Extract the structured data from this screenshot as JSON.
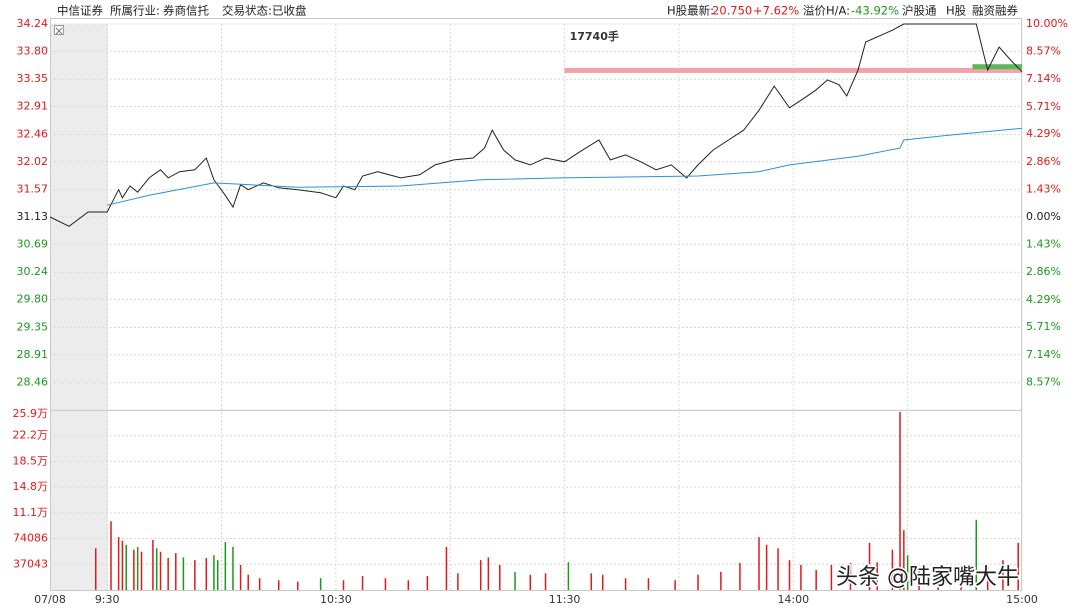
{
  "header": {
    "stock": "中信证券",
    "industry_label": "所属行业:",
    "industry": "券商信托",
    "status_label": "交易状态:",
    "status": "已收盘",
    "h_label": "H股最新:",
    "h_price": "20.750",
    "h_change": "+7.62%",
    "premium_label": "溢价H/A:",
    "premium": "-43.92%",
    "tags": [
      "沪股通",
      "H股",
      "融资融券"
    ]
  },
  "watermark": "头条 @陆家嘴大牛",
  "chart_data": [
    {
      "type": "line",
      "xlim": [
        -15,
        240
      ],
      "xticks": [
        {
          "value": -15,
          "label": "07/08"
        },
        {
          "value": 0,
          "label": "9:30"
        },
        {
          "value": 60,
          "label": "10:30"
        },
        {
          "value": 120,
          "label": "11:30"
        },
        {
          "value": 180,
          "label": "14:00"
        },
        {
          "value": 240,
          "label": "15:00"
        }
      ],
      "xgrid": [
        0,
        30,
        60,
        90,
        120,
        150,
        180,
        210,
        240
      ],
      "ylim": [
        28.02,
        34.24
      ],
      "yticks": [
        34.24,
        {
          "value": 33.8,
          "label": "33.80"
        },
        33.35,
        32.91,
        32.46,
        32.02,
        31.57,
        31.13,
        30.69,
        30.24,
        {
          "value": 29.8,
          "label": "29.80"
        },
        29.35,
        28.91,
        28.46
      ],
      "y2lim": [
        -10,
        10
      ],
      "y2ticks": [
        {
          "value": 10,
          "label": "10.00%"
        },
        {
          "value": 8.57,
          "label": "8.57%"
        },
        {
          "value": 7.14,
          "label": "7.14%"
        },
        {
          "value": 5.71,
          "label": "5.71%"
        },
        {
          "value": 4.29,
          "label": "4.29%"
        },
        {
          "value": 2.86,
          "label": "2.86%"
        },
        {
          "value": 1.43,
          "label": "1.43%"
        },
        {
          "value": 0,
          "label": "0.00%"
        },
        {
          "value": -1.43,
          "label": "1.43%"
        },
        {
          "value": -2.86,
          "label": "2.86%"
        },
        {
          "value": -4.29,
          "label": "4.29%"
        },
        {
          "value": -5.71,
          "label": "5.71%"
        },
        {
          "value": -7.14,
          "label": "7.14%"
        },
        {
          "value": -8.57,
          "label": "8.57%"
        }
      ],
      "up_color": "#e0191b",
      "down_color": "#1a9a1a",
      "flat_color": "#222222",
      "grid": true,
      "series": [
        {
          "color": "#222222",
          "x": [
            -15,
            -10,
            -5,
            0,
            3,
            4,
            6,
            8,
            11,
            14,
            16,
            19,
            23,
            26,
            28,
            31,
            33,
            35,
            37,
            41,
            45,
            50,
            56,
            60,
            62,
            65,
            67,
            71,
            77,
            82,
            86,
            91,
            96,
            99,
            101,
            104,
            107,
            111,
            115,
            120,
            124,
            129,
            132,
            136,
            140,
            144,
            148,
            152,
            155,
            159,
            163,
            167,
            171,
            175,
            179,
            183,
            186,
            189,
            192,
            194,
            197,
            199,
            203,
            206,
            209,
            218,
            228,
            230,
            231,
            234,
            237,
            240
          ],
          "values": [
            31.13,
            30.98,
            31.21,
            31.21,
            31.57,
            31.44,
            31.63,
            31.53,
            31.76,
            31.89,
            31.76,
            31.86,
            31.89,
            32.08,
            31.73,
            31.48,
            31.29,
            31.65,
            31.57,
            31.68,
            31.6,
            31.57,
            31.52,
            31.44,
            31.63,
            31.57,
            31.79,
            31.86,
            31.76,
            31.81,
            31.97,
            32.05,
            32.08,
            32.24,
            32.53,
            32.21,
            32.05,
            31.97,
            32.08,
            32.02,
            32.18,
            32.37,
            32.05,
            32.13,
            32.02,
            31.89,
            31.97,
            31.76,
            31.97,
            32.21,
            32.37,
            32.53,
            32.85,
            33.24,
            32.89,
            33.05,
            33.18,
            33.34,
            33.26,
            33.08,
            33.5,
            33.95,
            34.06,
            34.14,
            34.24,
            34.24,
            34.24,
            33.74,
            33.5,
            33.87,
            33.66,
            33.47
          ]
        },
        {
          "color": "#2f8fd8",
          "x": [
            0,
            11,
            28,
            50,
            77,
            98,
            119,
            155,
            171,
            179,
            197,
            208,
            209,
            221,
            240
          ],
          "values": [
            31.32,
            31.48,
            31.68,
            31.61,
            31.63,
            31.73,
            31.76,
            31.79,
            31.86,
            31.97,
            32.11,
            32.24,
            32.37,
            32.45,
            32.56
          ]
        }
      ],
      "annotations": [
        {
          "label": "17740手",
          "price": 33.5,
          "start": 120,
          "color": "#f3a3a3"
        },
        {
          "price": 33.56,
          "start": 227,
          "color": "#5cb85c"
        }
      ]
    },
    {
      "type": "bar",
      "xlim": [
        -15,
        240
      ],
      "ylim": [
        0,
        259000
      ],
      "yticks": [
        {
          "value": 259000,
          "label": "25.9万"
        },
        {
          "value": 222000,
          "label": "22.2万"
        },
        {
          "value": 185000,
          "label": "18.5万"
        },
        {
          "value": 148000,
          "label": "14.8万"
        },
        {
          "value": 111000,
          "label": "11.1万"
        },
        74086,
        37043
      ],
      "tick_color": "#e0191b",
      "grid": true,
      "series": [
        {
          "color": "#e0191b",
          "x": [
            -3,
            1,
            3,
            4,
            7,
            9,
            12,
            14,
            16,
            18,
            23,
            26,
            35,
            37,
            40,
            45,
            50,
            62,
            67,
            73,
            79,
            84,
            89,
            92,
            98,
            100,
            103,
            111,
            115,
            127,
            130,
            136,
            142,
            149,
            155,
            161,
            166,
            171,
            173,
            176,
            179,
            182,
            186,
            190,
            195,
            200,
            202,
            206,
            208,
            209,
            213,
            218,
            224,
            231,
            235,
            239
          ],
          "values": [
            60000,
            99000,
            76000,
            71000,
            58000,
            55000,
            72000,
            55000,
            46000,
            53000,
            43000,
            46000,
            36000,
            22000,
            17000,
            14000,
            12000,
            14000,
            20000,
            17000,
            14000,
            20000,
            62000,
            24000,
            43000,
            47000,
            36000,
            22000,
            24000,
            24000,
            22000,
            17000,
            17000,
            14000,
            22000,
            26000,
            39000,
            76000,
            65000,
            60000,
            43000,
            36000,
            29000,
            36000,
            39000,
            68000,
            40000,
            58000,
            256000,
            86000,
            33000,
            22000,
            29000,
            36000,
            43000,
            68000
          ]
        },
        {
          "color": "#1a9a1a",
          "x": [
            5,
            8,
            13,
            20,
            28,
            29,
            31,
            33,
            56,
            107,
            121,
            210,
            228
          ],
          "values": [
            65000,
            62000,
            60000,
            47000,
            50000,
            43000,
            69000,
            62000,
            17000,
            26000,
            40000,
            50000,
            101000
          ]
        }
      ]
    }
  ]
}
